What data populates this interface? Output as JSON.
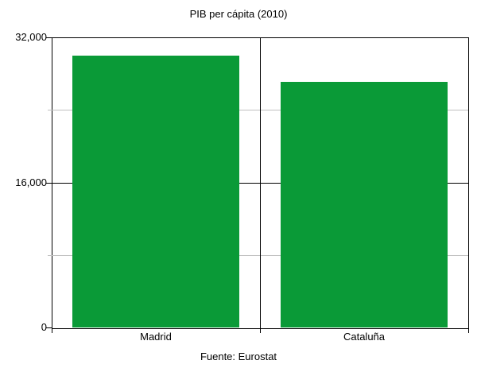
{
  "page": {
    "title": "PIB per cápita (2010)",
    "source": "Fuente: Eurostat"
  },
  "chart_data": {
    "type": "bar",
    "title": "PIB per cápita (2010)",
    "source": "Fuente: Eurostat",
    "categories": [
      "Madrid",
      "Cataluña"
    ],
    "values": [
      30000,
      27100
    ],
    "xlabel": "",
    "ylabel": "",
    "ylim": [
      0,
      32000
    ],
    "yticks": [
      {
        "value": 0,
        "label": "0"
      },
      {
        "value": 16000,
        "label": "16,000"
      },
      {
        "value": 32000,
        "label": "32,000"
      }
    ],
    "minor_gridlines": [
      8000,
      24000
    ],
    "legend": "none",
    "grid": {
      "major": "dark",
      "minor": "light-gray"
    },
    "colors": {
      "bar": "#0a9a37",
      "axis": "#000000",
      "minor_grid": "#c0c0c0",
      "background": "#ffffff",
      "text": "#000000"
    }
  }
}
